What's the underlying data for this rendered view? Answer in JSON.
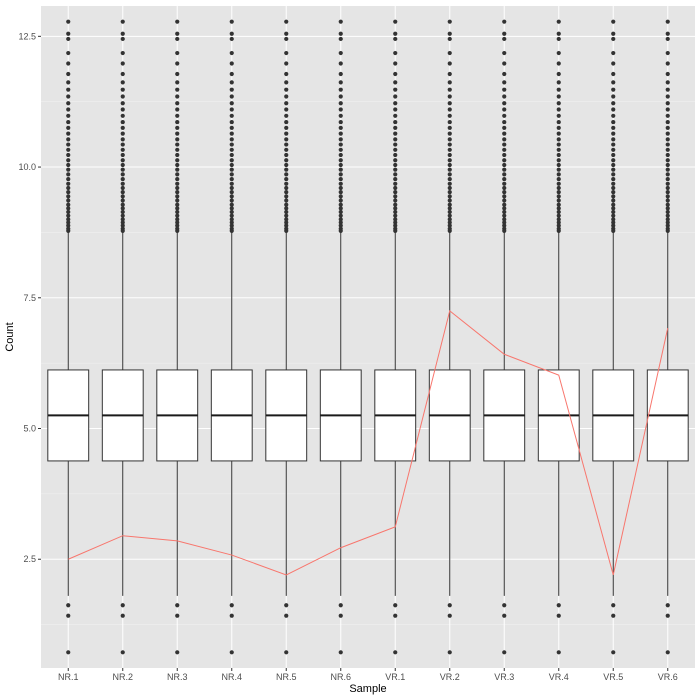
{
  "chart_data": {
    "type": "boxplot",
    "xlabel": "Sample",
    "ylabel": "Count",
    "categories": [
      "NR.1",
      "NR.2",
      "NR.3",
      "NR.4",
      "NR.5",
      "NR.6",
      "VR.1",
      "VR.2",
      "VR.3",
      "VR.4",
      "VR.5",
      "VR.6"
    ],
    "ylim": [
      0.42,
      13.08
    ],
    "y_ticks": [
      2.5,
      5.0,
      7.5,
      10.0,
      12.5
    ],
    "y_tick_labels": [
      "2.5",
      "5.0",
      "7.5",
      "10.0",
      "12.5"
    ],
    "grid": true,
    "boxes": [
      {
        "label": "NR.1",
        "whisker_low": 1.8,
        "q1": 4.38,
        "median": 5.25,
        "q3": 6.12,
        "whisker_high": 8.75
      },
      {
        "label": "NR.2",
        "whisker_low": 1.8,
        "q1": 4.38,
        "median": 5.25,
        "q3": 6.12,
        "whisker_high": 8.75
      },
      {
        "label": "NR.3",
        "whisker_low": 1.8,
        "q1": 4.38,
        "median": 5.25,
        "q3": 6.12,
        "whisker_high": 8.75
      },
      {
        "label": "NR.4",
        "whisker_low": 1.8,
        "q1": 4.38,
        "median": 5.25,
        "q3": 6.12,
        "whisker_high": 8.75
      },
      {
        "label": "NR.5",
        "whisker_low": 1.8,
        "q1": 4.38,
        "median": 5.25,
        "q3": 6.12,
        "whisker_high": 8.75
      },
      {
        "label": "NR.6",
        "whisker_low": 1.8,
        "q1": 4.38,
        "median": 5.25,
        "q3": 6.12,
        "whisker_high": 8.75
      },
      {
        "label": "VR.1",
        "whisker_low": 1.8,
        "q1": 4.38,
        "median": 5.25,
        "q3": 6.12,
        "whisker_high": 8.75
      },
      {
        "label": "VR.2",
        "whisker_low": 1.8,
        "q1": 4.38,
        "median": 5.25,
        "q3": 6.12,
        "whisker_high": 8.75
      },
      {
        "label": "VR.3",
        "whisker_low": 1.8,
        "q1": 4.38,
        "median": 5.25,
        "q3": 6.12,
        "whisker_high": 8.75
      },
      {
        "label": "VR.4",
        "whisker_low": 1.8,
        "q1": 4.38,
        "median": 5.25,
        "q3": 6.12,
        "whisker_high": 8.75
      },
      {
        "label": "VR.5",
        "whisker_low": 1.8,
        "q1": 4.38,
        "median": 5.25,
        "q3": 6.12,
        "whisker_high": 8.75
      },
      {
        "label": "VR.6",
        "whisker_low": 1.8,
        "q1": 4.38,
        "median": 5.25,
        "q3": 6.12,
        "whisker_high": 8.75
      }
    ],
    "outliers_low": [
      1.62,
      1.42,
      0.72
    ],
    "outliers_high": [
      12.78,
      12.55,
      12.45,
      12.18,
      11.98,
      11.78,
      11.62,
      11.48,
      11.35,
      11.22,
      11.1,
      10.98,
      10.86,
      10.75,
      10.64,
      10.53,
      10.43,
      10.33,
      10.23,
      10.13,
      10.04,
      9.95,
      9.86,
      9.77,
      9.68,
      9.6,
      9.52,
      9.44,
      9.36,
      9.28,
      9.21,
      9.14,
      9.07,
      9.0,
      8.94,
      8.88,
      8.82,
      8.78
    ],
    "line_series": {
      "color": "#f8766d",
      "values": [
        2.5,
        2.95,
        2.85,
        2.58,
        2.2,
        2.72,
        3.12,
        7.25,
        6.42,
        6.02,
        2.2,
        6.92
      ]
    },
    "colors": {
      "panel_background": "#e5e5e5",
      "grid_major": "#ffffff",
      "box_fill": "#ffffff",
      "box_stroke": "#333333",
      "point": "#333333"
    }
  }
}
